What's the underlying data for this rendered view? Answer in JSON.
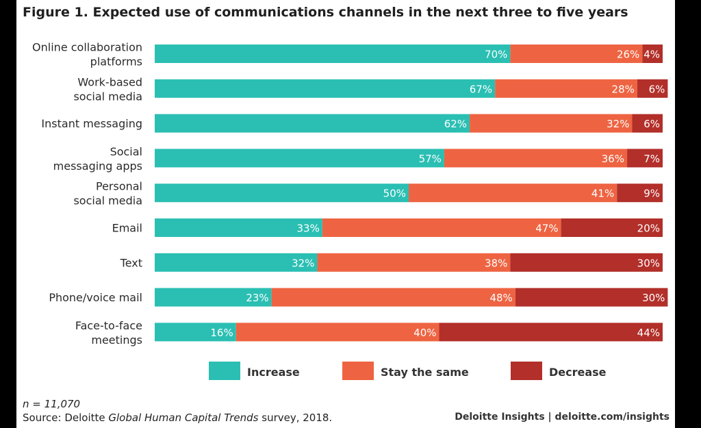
{
  "colors": {
    "increase": "#2bbfb3",
    "stay": "#ee6442",
    "decrease": "#b22f2a",
    "background": "#ffffff",
    "frame": "#000000"
  },
  "chart_data": {
    "type": "bar",
    "orientation": "horizontal",
    "stacked": true,
    "title": "Figure 1. Expected use of communications channels in the next three to five years",
    "categories": [
      [
        "Online collaboration",
        "platforms"
      ],
      [
        "Work-based",
        "social media"
      ],
      [
        "Instant messaging"
      ],
      [
        "Social",
        "messaging apps"
      ],
      [
        "Personal",
        "social media"
      ],
      [
        "Email"
      ],
      [
        "Text"
      ],
      [
        "Phone/voice mail"
      ],
      [
        "Face-to-face",
        "meetings"
      ]
    ],
    "series": [
      {
        "name": "Increase",
        "values": [
          70,
          67,
          62,
          57,
          50,
          33,
          32,
          23,
          16
        ]
      },
      {
        "name": "Stay the same",
        "values": [
          26,
          28,
          32,
          36,
          41,
          47,
          38,
          48,
          40
        ]
      },
      {
        "name": "Decrease",
        "values": [
          4,
          6,
          6,
          7,
          9,
          20,
          30,
          30,
          44
        ]
      }
    ],
    "value_suffix": "%",
    "xlim": [
      0,
      100
    ],
    "legend_position": "bottom"
  },
  "footer": {
    "note": "n = 11,070",
    "source_prefix": "Source: Deloitte ",
    "source_italic": "Global Human Capital Trends",
    "source_suffix": " survey, 2018.",
    "brand": "Deloitte Insights | deloitte.com/insights"
  }
}
